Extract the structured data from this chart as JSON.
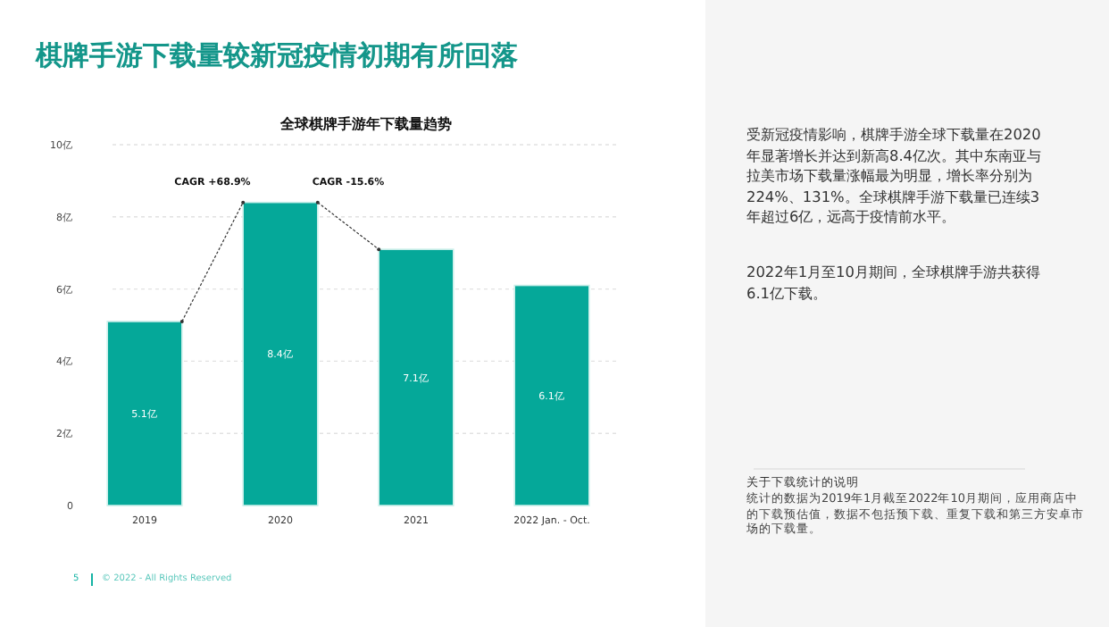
{
  "chart_data": {
    "type": "bar",
    "title": "棋牌手游下载量较新冠疫情初期有所回落",
    "subtitle": "全球棋牌手游年下载量趋势",
    "categories": [
      "2019",
      "2020",
      "2021",
      "2022 Jan. - Oct."
    ],
    "values": [
      5.1,
      8.4,
      7.1,
      6.1
    ],
    "value_labels": [
      "5.1亿",
      "8.4亿",
      "7.1亿",
      "6.1亿"
    ],
    "color": "#05a899",
    "ylim": [
      0,
      10
    ],
    "yticks": [
      0,
      {
        "value": 2,
        "label": "2亿"
      },
      {
        "value": 4,
        "label": "4亿"
      },
      {
        "value": 6,
        "label": "6亿"
      },
      {
        "value": 8,
        "label": "8亿"
      },
      {
        "value": 10,
        "label": "10亿"
      }
    ],
    "grid": "y",
    "annotations": [
      "CAGR +68.9%",
      "CAGR -15.6%",
      "受新冠疫情影响，棋牌手游全球下载量在2020年显著增长并达到新高8.4亿次。其中东南亚与拉美市场下载量涨幅最为明显，增长率分别为224%、131%。全球棋牌手游下载量已连续3年超过6亿，远高于疫情前水平。",
      "2022年1月至10月期间，全球棋牌手游共获得6.1亿下载。",
      "关于下载统计的说明",
      "统计的数据为2019年1月截至2022年10月期间，应用商店中的下载预估值，数据不包括预下载、重复下载和第三方安卓市场的下载量。",
      "5",
      "© 2022 - All Rights Reserved"
    ]
  }
}
